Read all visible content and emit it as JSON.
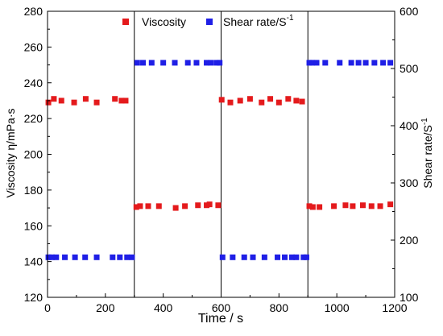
{
  "chart_data": {
    "type": "scatter",
    "title": "",
    "xlabel": "Time / s",
    "ylabel_left": "Viscosity η/mPa·s",
    "ylabel_right": "Shear rate/S",
    "ylabel_right_sup": "-1",
    "xlim": [
      0,
      1200
    ],
    "ylim_left": [
      120,
      280
    ],
    "ylim_right": [
      100,
      600
    ],
    "x_ticks": [
      0,
      200,
      400,
      600,
      800,
      1000,
      1200
    ],
    "y_ticks_left": [
      120,
      140,
      160,
      180,
      200,
      220,
      240,
      260,
      280
    ],
    "y_ticks_right": [
      100,
      200,
      300,
      400,
      500,
      600
    ],
    "vertical_lines": [
      300,
      600,
      900
    ],
    "grid": false,
    "legend_placement": "top-center",
    "series": [
      {
        "name": "Viscosity",
        "axis": "left",
        "color": "#e41a1c",
        "marker": "square",
        "points": [
          [
            3,
            229
          ],
          [
            22,
            231
          ],
          [
            48,
            230
          ],
          [
            92,
            229
          ],
          [
            132,
            231
          ],
          [
            170,
            229
          ],
          [
            233,
            231
          ],
          [
            256,
            230
          ],
          [
            270,
            230
          ],
          [
            307,
            170.5
          ],
          [
            320,
            171
          ],
          [
            348,
            171
          ],
          [
            385,
            171
          ],
          [
            443,
            170
          ],
          [
            475,
            171
          ],
          [
            520,
            171.5
          ],
          [
            550,
            171.5
          ],
          [
            560,
            172
          ],
          [
            590,
            171.5
          ],
          [
            602,
            230.5
          ],
          [
            632,
            229
          ],
          [
            666,
            230
          ],
          [
            700,
            231
          ],
          [
            740,
            229
          ],
          [
            770,
            231
          ],
          [
            800,
            229
          ],
          [
            832,
            231
          ],
          [
            860,
            230
          ],
          [
            880,
            229.5
          ],
          [
            905,
            171
          ],
          [
            917,
            170.5
          ],
          [
            940,
            170.5
          ],
          [
            990,
            171
          ],
          [
            1030,
            171.5
          ],
          [
            1055,
            171
          ],
          [
            1090,
            171.5
          ],
          [
            1120,
            171
          ],
          [
            1150,
            171
          ],
          [
            1185,
            172
          ]
        ]
      },
      {
        "name": "Shear rate/S",
        "name_sup": "-1",
        "axis": "right",
        "color": "#1f1fe6",
        "marker": "square",
        "points": [
          [
            3,
            170
          ],
          [
            15,
            170
          ],
          [
            30,
            170
          ],
          [
            60,
            170
          ],
          [
            95,
            170
          ],
          [
            130,
            170
          ],
          [
            170,
            170
          ],
          [
            225,
            170
          ],
          [
            250,
            170
          ],
          [
            275,
            170
          ],
          [
            292,
            170
          ],
          [
            310,
            510
          ],
          [
            330,
            510
          ],
          [
            360,
            510
          ],
          [
            400,
            510
          ],
          [
            440,
            510
          ],
          [
            485,
            510
          ],
          [
            515,
            510
          ],
          [
            550,
            510
          ],
          [
            565,
            510
          ],
          [
            585,
            510
          ],
          [
            595,
            510
          ],
          [
            605,
            170
          ],
          [
            640,
            170
          ],
          [
            680,
            170
          ],
          [
            710,
            170
          ],
          [
            750,
            170
          ],
          [
            795,
            170
          ],
          [
            820,
            170
          ],
          [
            845,
            170
          ],
          [
            860,
            170
          ],
          [
            885,
            170
          ],
          [
            895,
            170
          ],
          [
            905,
            510
          ],
          [
            915,
            510
          ],
          [
            930,
            510
          ],
          [
            960,
            510
          ],
          [
            1010,
            510
          ],
          [
            1050,
            510
          ],
          [
            1075,
            510
          ],
          [
            1100,
            510
          ],
          [
            1130,
            510
          ],
          [
            1160,
            510
          ],
          [
            1185,
            510
          ]
        ]
      }
    ]
  }
}
